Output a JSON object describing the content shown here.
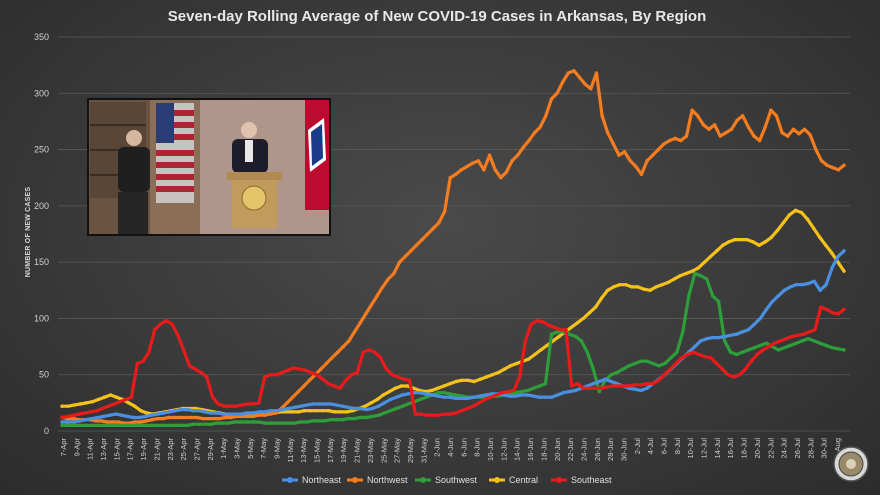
{
  "chart_data": {
    "type": "line",
    "title": "Seven-day Rolling Average of New COVID-19 Cases in Arkansas, By Region",
    "ylabel": "NUMBER OF NEW CASES",
    "xlabel": "",
    "ylim": [
      0,
      350
    ],
    "yticks": [
      0,
      50,
      100,
      150,
      200,
      250,
      300,
      350
    ],
    "grid": true,
    "legend_position": "bottom-center",
    "x_tick_labels": [
      "7-Apr",
      "9-Apr",
      "11-Apr",
      "13-Apr",
      "15-Apr",
      "17-Apr",
      "19-Apr",
      "21-Apr",
      "23-Apr",
      "25-Apr",
      "27-Apr",
      "29-Apr",
      "1-May",
      "3-May",
      "5-May",
      "7-May",
      "9-May",
      "11-May",
      "13-May",
      "15-May",
      "17-May",
      "19-May",
      "21-May",
      "23-May",
      "25-May",
      "27-May",
      "29-May",
      "31-May",
      "2-Jun",
      "4-Jun",
      "6-Jun",
      "8-Jun",
      "10-Jun",
      "12-Jun",
      "14-Jun",
      "16-Jun",
      "18-Jun",
      "20-Jun",
      "22-Jun",
      "24-Jun",
      "26-Jun",
      "28-Jun",
      "30-Jun",
      "2-Jul",
      "4-Jul",
      "6-Jul",
      "8-Jul",
      "10-Jul",
      "12-Jul",
      "14-Jul",
      "16-Jul",
      "18-Jul",
      "20-Jul",
      "22-Jul",
      "24-Jul",
      "26-Jul",
      "28-Jul",
      "30-Jul",
      "1-Aug"
    ],
    "series": [
      {
        "name": "Northeast",
        "color": "#4a90e2",
        "values": [
          8,
          8,
          8,
          9,
          10,
          11,
          12,
          13,
          14,
          15,
          14,
          13,
          12,
          12,
          13,
          14,
          15,
          16,
          17,
          18,
          19,
          19,
          18,
          18,
          17,
          16,
          16,
          15,
          15,
          15,
          15,
          16,
          16,
          17,
          17,
          18,
          18,
          19,
          20,
          21,
          22,
          23,
          24,
          24,
          24,
          24,
          23,
          22,
          21,
          20,
          20,
          19,
          20,
          22,
          25,
          28,
          30,
          32,
          33,
          34,
          34,
          33,
          32,
          31,
          30,
          30,
          29,
          29,
          29,
          30,
          31,
          32,
          33,
          33,
          32,
          31,
          31,
          32,
          32,
          31,
          30,
          30,
          30,
          32,
          34,
          35,
          36,
          38,
          40,
          42,
          44,
          46,
          44,
          42,
          40,
          38,
          37,
          36,
          38,
          42,
          46,
          50,
          55,
          60,
          65,
          70,
          75,
          80,
          82,
          83,
          83,
          84,
          85,
          86,
          88,
          90,
          95,
          100,
          108,
          115,
          120,
          125,
          128,
          130,
          130,
          131,
          133,
          125,
          130,
          145,
          155,
          160
        ]
      },
      {
        "name": "Northwest",
        "color": "#f57c1f",
        "values": [
          12,
          11,
          11,
          10,
          10,
          10,
          9,
          9,
          8,
          8,
          8,
          7,
          7,
          8,
          8,
          9,
          10,
          11,
          11,
          12,
          12,
          12,
          12,
          12,
          12,
          11,
          11,
          11,
          11,
          12,
          12,
          13,
          13,
          13,
          13,
          14,
          14,
          15,
          16,
          20,
          25,
          30,
          35,
          40,
          45,
          50,
          55,
          60,
          65,
          70,
          75,
          80,
          88,
          96,
          104,
          112,
          120,
          128,
          135,
          140,
          150,
          155,
          160,
          165,
          170,
          175,
          180,
          185,
          195,
          225,
          228,
          232,
          235,
          238,
          240,
          232,
          245,
          232,
          225,
          230,
          240,
          245,
          252,
          258,
          265,
          270,
          280,
          295,
          300,
          310,
          318,
          320,
          314,
          308,
          304,
          318,
          280,
          265,
          255,
          245,
          248,
          240,
          235,
          228,
          240,
          245,
          250,
          255,
          258,
          260,
          258,
          262,
          285,
          280,
          272,
          268,
          272,
          262,
          265,
          268,
          276,
          280,
          270,
          262,
          258,
          270,
          285,
          280,
          265,
          262,
          268,
          264,
          268,
          263,
          250,
          240,
          236,
          234,
          232,
          236
        ]
      },
      {
        "name": "Southwest",
        "color": "#2e9e3a",
        "values": [
          5,
          5,
          5,
          5,
          5,
          5,
          5,
          5,
          5,
          5,
          5,
          5,
          5,
          5,
          5,
          5,
          5,
          5,
          5,
          5,
          5,
          5,
          6,
          6,
          6,
          6,
          7,
          7,
          7,
          8,
          8,
          8,
          8,
          8,
          7,
          7,
          7,
          7,
          7,
          7,
          8,
          8,
          9,
          9,
          9,
          10,
          10,
          10,
          11,
          11,
          12,
          12,
          13,
          14,
          16,
          18,
          20,
          22,
          24,
          26,
          28,
          30,
          32,
          34,
          34,
          33,
          32,
          31,
          30,
          30,
          30,
          30,
          31,
          31,
          32,
          33,
          34,
          35,
          36,
          38,
          40,
          42,
          86,
          88,
          88,
          86,
          84,
          80,
          70,
          55,
          35,
          45,
          50,
          52,
          55,
          58,
          60,
          62,
          62,
          60,
          58,
          60,
          65,
          70,
          88,
          120,
          140,
          138,
          135,
          120,
          115,
          80,
          70,
          68,
          70,
          72,
          74,
          76,
          78,
          75,
          72,
          74,
          76,
          78,
          80,
          82,
          80,
          78,
          76,
          74,
          73,
          72
        ]
      },
      {
        "name": "Central",
        "color": "#f4c21a",
        "values": [
          22,
          22,
          23,
          24,
          25,
          26,
          28,
          30,
          32,
          30,
          28,
          25,
          22,
          18,
          16,
          15,
          16,
          17,
          18,
          19,
          20,
          20,
          20,
          19,
          18,
          17,
          16,
          15,
          14,
          14,
          14,
          15,
          15,
          16,
          16,
          16,
          17,
          17,
          17,
          17,
          18,
          18,
          18,
          18,
          18,
          17,
          17,
          17,
          18,
          20,
          22,
          25,
          28,
          32,
          35,
          38,
          40,
          40,
          38,
          36,
          35,
          36,
          38,
          40,
          42,
          44,
          45,
          45,
          44,
          46,
          48,
          50,
          52,
          55,
          58,
          60,
          62,
          64,
          68,
          72,
          76,
          80,
          84,
          88,
          92,
          96,
          100,
          105,
          110,
          118,
          125,
          128,
          130,
          130,
          128,
          128,
          126,
          125,
          128,
          130,
          132,
          135,
          138,
          140,
          142,
          145,
          150,
          155,
          160,
          165,
          168,
          170,
          170,
          170,
          168,
          165,
          168,
          172,
          178,
          185,
          192,
          196,
          194,
          188,
          180,
          172,
          165,
          158,
          150,
          142
        ]
      },
      {
        "name": "Southeast",
        "color": "#e81b1b",
        "values": [
          12,
          13,
          14,
          15,
          16,
          17,
          18,
          20,
          22,
          24,
          26,
          28,
          30,
          60,
          62,
          70,
          90,
          95,
          98,
          95,
          85,
          72,
          58,
          55,
          52,
          48,
          30,
          24,
          22,
          22,
          22,
          23,
          24,
          24,
          25,
          48,
          50,
          50,
          52,
          54,
          56,
          55,
          54,
          52,
          50,
          46,
          42,
          40,
          38,
          45,
          50,
          52,
          70,
          72,
          70,
          65,
          55,
          50,
          48,
          46,
          45,
          15,
          15,
          14,
          14,
          14,
          15,
          15,
          16,
          18,
          20,
          22,
          25,
          28,
          30,
          32,
          34,
          35,
          36,
          48,
          80,
          95,
          98,
          97,
          94,
          92,
          90,
          90,
          40,
          42,
          38,
          38,
          38,
          38,
          39,
          40,
          40,
          40,
          40,
          41,
          41,
          42,
          42,
          45,
          50,
          55,
          60,
          65,
          68,
          70,
          68,
          66,
          65,
          60,
          55,
          50,
          48,
          50,
          55,
          62,
          68,
          72,
          75,
          78,
          80,
          82,
          84,
          85,
          86,
          88,
          90,
          110,
          108,
          105,
          104,
          108
        ]
      }
    ]
  }
}
